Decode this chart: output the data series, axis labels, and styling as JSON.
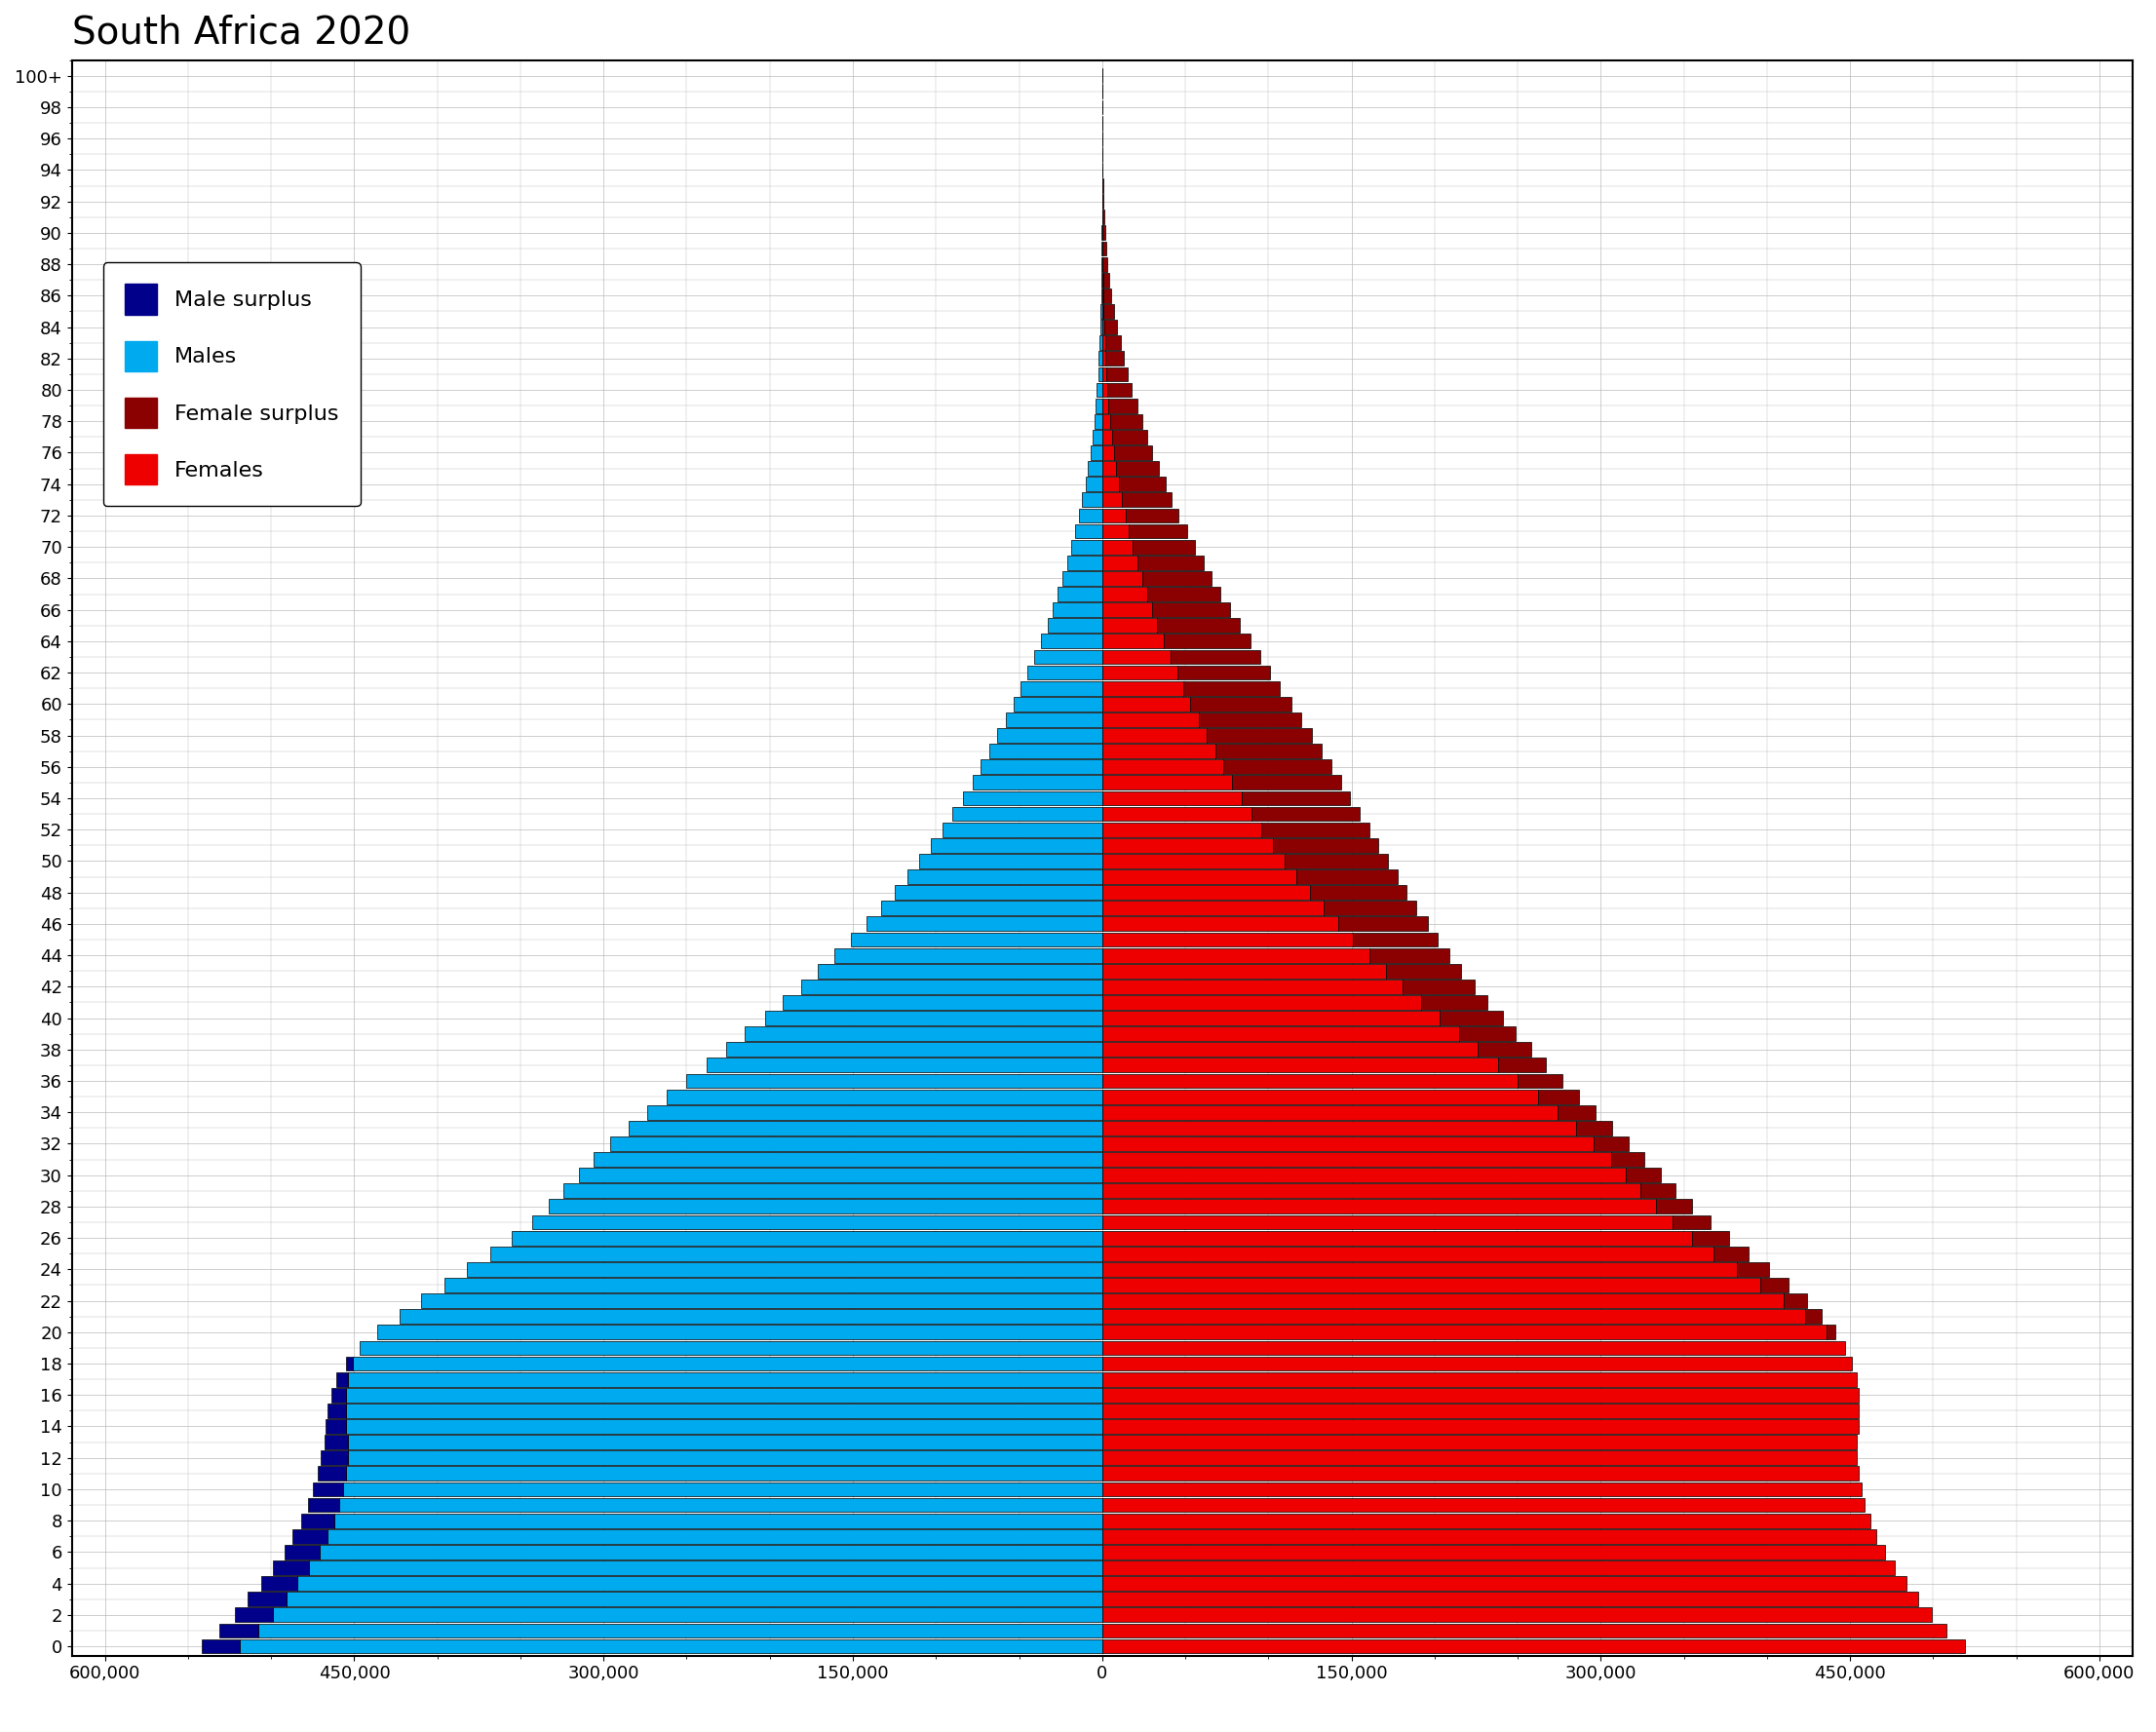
{
  "title": "South Africa 2020",
  "title_fontsize": 28,
  "tick_fontsize": 13,
  "legend_fontsize": 16,
  "xlim": 620000,
  "background_color": "#ffffff",
  "grid_color": "#bbbbbb",
  "male_color": "#00aaee",
  "male_surplus_color": "#00008b",
  "female_color": "#ee0000",
  "female_surplus_color": "#8b0000",
  "ages": [
    0,
    1,
    2,
    3,
    4,
    5,
    6,
    7,
    8,
    9,
    10,
    11,
    12,
    13,
    14,
    15,
    16,
    17,
    18,
    19,
    20,
    21,
    22,
    23,
    24,
    25,
    26,
    27,
    28,
    29,
    30,
    31,
    32,
    33,
    34,
    35,
    36,
    37,
    38,
    39,
    40,
    41,
    42,
    43,
    44,
    45,
    46,
    47,
    48,
    49,
    50,
    51,
    52,
    53,
    54,
    55,
    56,
    57,
    58,
    59,
    60,
    61,
    62,
    63,
    64,
    65,
    66,
    67,
    68,
    69,
    70,
    71,
    72,
    73,
    74,
    75,
    76,
    77,
    78,
    79,
    80,
    81,
    82,
    83,
    84,
    85,
    86,
    87,
    88,
    89,
    90,
    91,
    92,
    93,
    94,
    95,
    96,
    97,
    98,
    99,
    100
  ],
  "males": [
    542000,
    531000,
    522000,
    514000,
    506000,
    499000,
    492000,
    487000,
    482000,
    478000,
    475000,
    472000,
    470000,
    468000,
    467000,
    466000,
    464000,
    461000,
    455000,
    447000,
    436000,
    423000,
    410000,
    396000,
    382000,
    368000,
    355000,
    343000,
    333000,
    324000,
    315000,
    306000,
    296000,
    285000,
    274000,
    262000,
    250000,
    238000,
    226000,
    215000,
    203000,
    192000,
    181000,
    171000,
    161000,
    151000,
    142000,
    133000,
    125000,
    117000,
    110000,
    103000,
    96000,
    90000,
    84000,
    78000,
    73000,
    68000,
    63000,
    58000,
    53000,
    49000,
    45000,
    41000,
    37000,
    33000,
    30000,
    27000,
    24000,
    21000,
    18500,
    16000,
    14000,
    12000,
    10000,
    8500,
    7000,
    5800,
    4800,
    3900,
    3100,
    2500,
    2000,
    1600,
    1200,
    950,
    720,
    540,
    390,
    280,
    190,
    130,
    85,
    55,
    35,
    20,
    12,
    7,
    4,
    2,
    1
  ],
  "females": [
    519000,
    508000,
    499000,
    491000,
    484000,
    477000,
    471000,
    466000,
    462000,
    459000,
    457000,
    455000,
    454000,
    454000,
    455000,
    455000,
    455000,
    454000,
    451000,
    447000,
    441000,
    433000,
    424000,
    413000,
    401000,
    389000,
    377000,
    366000,
    355000,
    345000,
    336000,
    326000,
    317000,
    307000,
    297000,
    287000,
    277000,
    267000,
    258000,
    249000,
    241000,
    232000,
    224000,
    216000,
    209000,
    202000,
    196000,
    189000,
    183000,
    178000,
    172000,
    166000,
    161000,
    155000,
    149000,
    144000,
    138000,
    132000,
    126000,
    120000,
    114000,
    107000,
    101000,
    95000,
    89000,
    83000,
    77000,
    71000,
    66000,
    61000,
    56000,
    51000,
    46000,
    42000,
    38000,
    34000,
    30000,
    27000,
    24000,
    21000,
    18000,
    15500,
    13000,
    11000,
    9000,
    7200,
    5600,
    4300,
    3200,
    2300,
    1650,
    1150,
    780,
    520,
    330,
    210,
    130,
    75,
    42,
    23,
    11
  ],
  "xticks": [
    -600000,
    -450000,
    -300000,
    -150000,
    0,
    150000,
    300000,
    450000,
    600000
  ],
  "xtick_labels": [
    "600,000",
    "450,000",
    "300,000",
    "150,000",
    "0",
    "150,000",
    "300,000",
    "450,000",
    "600,000"
  ]
}
